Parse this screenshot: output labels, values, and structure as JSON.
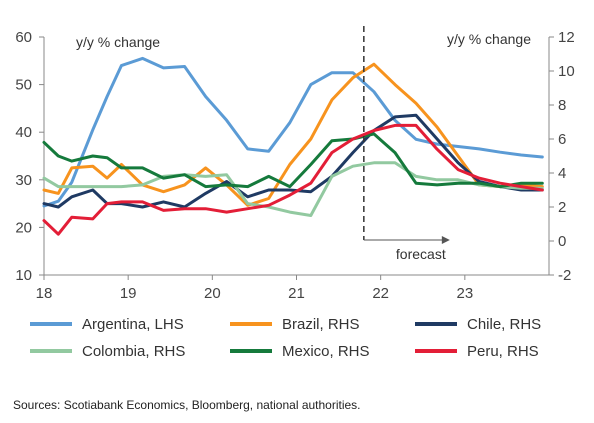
{
  "chart_data": {
    "type": "line",
    "title": "",
    "left_unit_label": "y/y % change",
    "right_unit_label": "y/y % change",
    "x_ticks": [
      "18",
      "19",
      "20",
      "21",
      "22",
      "23"
    ],
    "y_left_ticks": [
      "10",
      "20",
      "30",
      "40",
      "50",
      "60"
    ],
    "y_right_ticks": [
      "-2",
      "0",
      "2",
      "4",
      "6",
      "8",
      "10",
      "12"
    ],
    "y_left_range": [
      10,
      60
    ],
    "y_right_range": [
      -2,
      12
    ],
    "x_range": [
      2018,
      2024
    ],
    "annotation": {
      "label": "forecast",
      "x": 2021.8
    },
    "grid": false,
    "legend_position": "bottom",
    "series": [
      {
        "name": "Argentina, LHS",
        "axis": "left",
        "color": "#5B9BD5",
        "x": [
          2018.0,
          2018.17,
          2018.33,
          2018.58,
          2018.75,
          2018.92,
          2019.17,
          2019.42,
          2019.67,
          2019.92,
          2020.17,
          2020.42,
          2020.67,
          2020.92,
          2021.17,
          2021.42,
          2021.67,
          2021.92,
          2022.17,
          2022.42,
          2022.67,
          2022.92,
          2023.17,
          2023.42,
          2023.67,
          2023.92
        ],
        "y": [
          24.5,
          25.5,
          29.5,
          40.5,
          47.5,
          54,
          55.5,
          53.5,
          53.8,
          47.5,
          42.5,
          36.5,
          36,
          42,
          50,
          52.5,
          52.5,
          48.5,
          42.5,
          38.5,
          37.5,
          37,
          36.5,
          35.8,
          35.2,
          34.8
        ]
      },
      {
        "name": "Brazil, RHS",
        "axis": "right",
        "color": "#F7931E",
        "x": [
          2018.0,
          2018.17,
          2018.33,
          2018.58,
          2018.75,
          2018.92,
          2019.17,
          2019.42,
          2019.67,
          2019.92,
          2020.17,
          2020.42,
          2020.67,
          2020.92,
          2021.17,
          2021.42,
          2021.67,
          2021.92,
          2022.17,
          2022.42,
          2022.67,
          2022.92,
          2023.17,
          2023.42,
          2023.67,
          2023.92
        ],
        "y": [
          3.0,
          2.8,
          4.3,
          4.4,
          3.7,
          4.5,
          3.3,
          2.9,
          3.3,
          4.3,
          3.3,
          2.1,
          2.5,
          4.5,
          6.0,
          8.3,
          9.6,
          10.4,
          9.2,
          8.1,
          6.7,
          5.0,
          3.3,
          3.2,
          3.3,
          3.2
        ]
      },
      {
        "name": "Chile, RHS",
        "axis": "right",
        "color": "#1F3A63",
        "x": [
          2018.0,
          2018.17,
          2018.33,
          2018.58,
          2018.75,
          2018.92,
          2019.17,
          2019.42,
          2019.67,
          2019.92,
          2020.17,
          2020.42,
          2020.67,
          2020.92,
          2021.17,
          2021.42,
          2021.67,
          2021.92,
          2022.17,
          2022.42,
          2022.67,
          2022.92,
          2023.17,
          2023.42,
          2023.67,
          2023.92
        ],
        "y": [
          2.2,
          2.0,
          2.6,
          3.0,
          2.2,
          2.2,
          2.0,
          2.3,
          2.0,
          2.8,
          3.5,
          2.6,
          3.0,
          3.0,
          2.9,
          3.8,
          5.2,
          6.5,
          7.3,
          7.4,
          6.0,
          4.6,
          3.5,
          3.2,
          3.0,
          3.0
        ]
      },
      {
        "name": "Colombia, RHS",
        "axis": "right",
        "color": "#92C9A0",
        "x": [
          2018.0,
          2018.17,
          2018.33,
          2018.58,
          2018.75,
          2018.92,
          2019.17,
          2019.42,
          2019.67,
          2019.92,
          2020.17,
          2020.42,
          2020.67,
          2020.92,
          2021.17,
          2021.42,
          2021.67,
          2021.92,
          2022.17,
          2022.42,
          2022.67,
          2022.92,
          2023.17,
          2023.42,
          2023.67,
          2023.92
        ],
        "y": [
          3.7,
          3.2,
          3.2,
          3.2,
          3.2,
          3.2,
          3.3,
          3.8,
          3.9,
          3.8,
          3.9,
          2.2,
          2.0,
          1.7,
          1.5,
          3.8,
          4.4,
          4.6,
          4.6,
          3.8,
          3.6,
          3.6,
          3.3,
          3.2,
          3.1,
          3.1
        ]
      },
      {
        "name": "Mexico, RHS",
        "axis": "right",
        "color": "#157A3C",
        "x": [
          2018.0,
          2018.17,
          2018.33,
          2018.58,
          2018.75,
          2018.92,
          2019.17,
          2019.42,
          2019.67,
          2019.92,
          2020.17,
          2020.42,
          2020.67,
          2020.92,
          2021.17,
          2021.42,
          2021.67,
          2021.92,
          2022.17,
          2022.42,
          2022.67,
          2022.92,
          2023.17,
          2023.42,
          2023.67,
          2023.92
        ],
        "y": [
          5.8,
          5.0,
          4.7,
          5.0,
          4.9,
          4.3,
          4.3,
          3.7,
          3.9,
          3.2,
          3.3,
          3.2,
          3.8,
          3.2,
          4.5,
          5.9,
          6.0,
          6.3,
          5.2,
          3.4,
          3.3,
          3.4,
          3.4,
          3.2,
          3.4,
          3.4
        ]
      },
      {
        "name": "Peru, RHS",
        "axis": "right",
        "color": "#E31E37",
        "x": [
          2018.0,
          2018.17,
          2018.33,
          2018.58,
          2018.75,
          2018.92,
          2019.17,
          2019.42,
          2019.67,
          2019.92,
          2020.17,
          2020.42,
          2020.67,
          2020.92,
          2021.17,
          2021.42,
          2021.67,
          2021.92,
          2022.17,
          2022.42,
          2022.67,
          2022.92,
          2023.17,
          2023.42,
          2023.67,
          2023.92
        ],
        "y": [
          1.2,
          0.4,
          1.4,
          1.3,
          2.2,
          2.3,
          2.3,
          1.8,
          1.9,
          1.9,
          1.7,
          1.9,
          2.1,
          2.7,
          3.4,
          5.2,
          6.0,
          6.5,
          6.8,
          6.8,
          5.4,
          4.2,
          3.7,
          3.4,
          3.2,
          3.0
        ]
      }
    ],
    "legend_order": [
      0,
      1,
      2,
      3,
      4,
      5
    ]
  },
  "source": "Sources: Scotiabank Economics, Bloomberg, national authorities."
}
